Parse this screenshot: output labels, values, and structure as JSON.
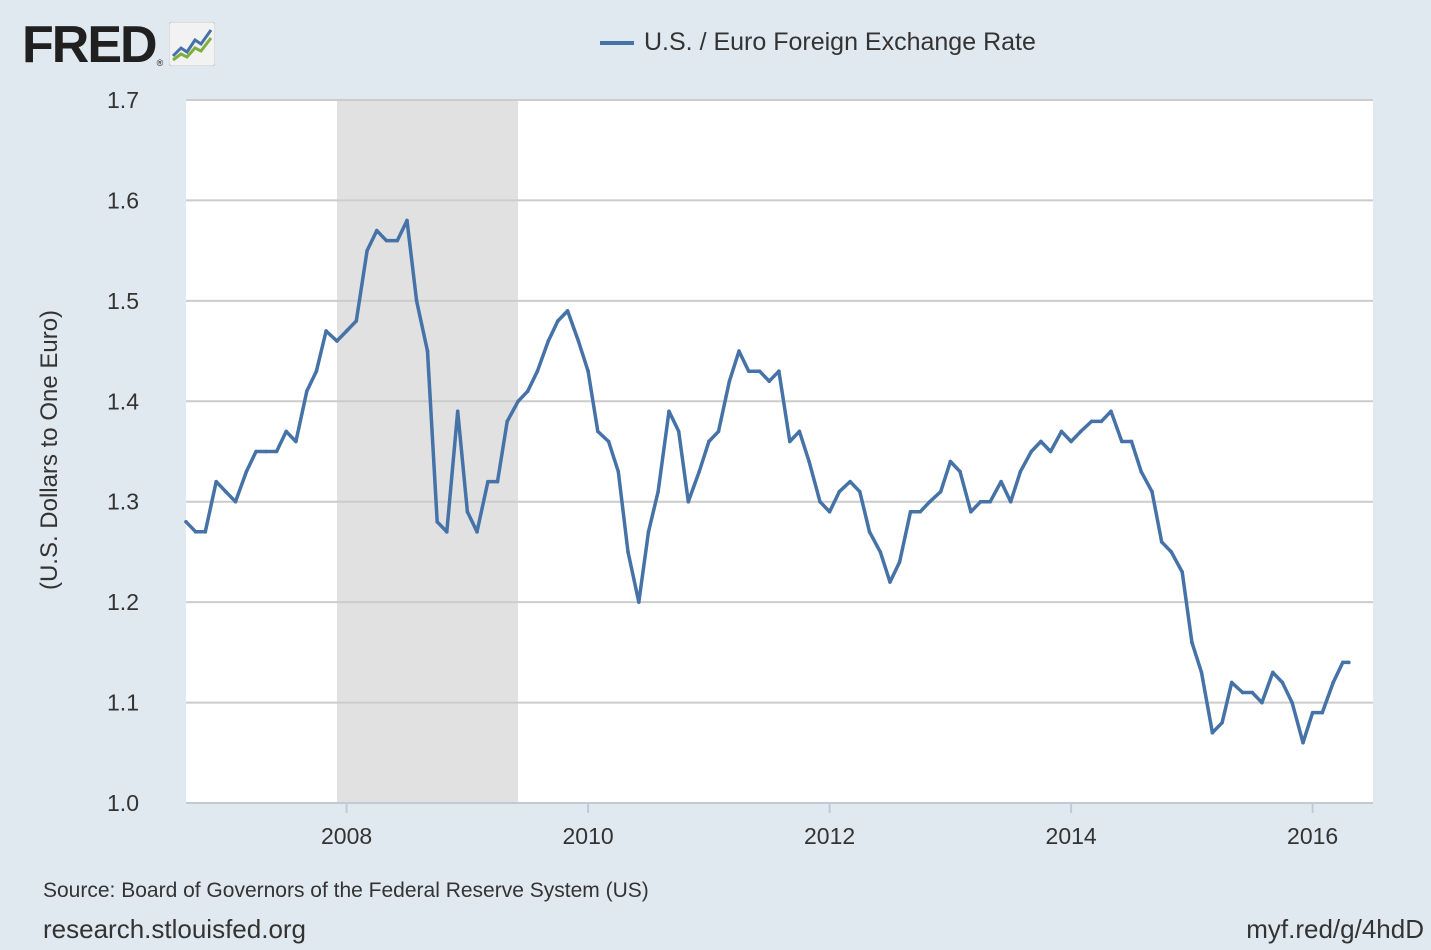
{
  "brand": {
    "logo_text": "FRED",
    "logo_mark": "®",
    "logo_icon": "line-chart-icon"
  },
  "footer": {
    "source": "Source: Board of Governors of the Federal Reserve System (US)",
    "site": "research.stlouisfed.org",
    "short_url": "myf.red/g/4hdD"
  },
  "colors": {
    "series": "#4572a7",
    "recession": "#e1e1e1",
    "grid": "#cccccc",
    "background": "#e1e9f0"
  },
  "chart_data": {
    "type": "line",
    "title": "",
    "xlabel": "",
    "ylabel": "(U.S. Dollars to One Euro)",
    "xlim": [
      2006.67,
      2016.5
    ],
    "ylim": [
      1.0,
      1.7
    ],
    "yticks": [
      "1.0",
      "1.1",
      "1.2",
      "1.3",
      "1.4",
      "1.5",
      "1.6",
      "1.7"
    ],
    "xticks": [
      "2008",
      "2010",
      "2012",
      "2014",
      "2016"
    ],
    "grid": true,
    "legend": "top-center",
    "recession_shading": [
      {
        "start": 2007.92,
        "end": 2009.42
      }
    ],
    "series": [
      {
        "name": "U.S. / Euro Foreign Exchange Rate",
        "x": [
          2006.67,
          2006.75,
          2006.83,
          2006.92,
          2007.0,
          2007.08,
          2007.17,
          2007.25,
          2007.33,
          2007.42,
          2007.5,
          2007.58,
          2007.67,
          2007.75,
          2007.83,
          2007.92,
          2008.0,
          2008.08,
          2008.17,
          2008.25,
          2008.33,
          2008.42,
          2008.5,
          2008.58,
          2008.67,
          2008.75,
          2008.83,
          2008.92,
          2009.0,
          2009.08,
          2009.17,
          2009.25,
          2009.33,
          2009.42,
          2009.5,
          2009.58,
          2009.67,
          2009.75,
          2009.83,
          2009.92,
          2010.0,
          2010.08,
          2010.17,
          2010.25,
          2010.33,
          2010.42,
          2010.5,
          2010.58,
          2010.67,
          2010.75,
          2010.83,
          2010.92,
          2011.0,
          2011.08,
          2011.17,
          2011.25,
          2011.33,
          2011.42,
          2011.5,
          2011.58,
          2011.67,
          2011.75,
          2011.83,
          2011.92,
          2012.0,
          2012.08,
          2012.17,
          2012.25,
          2012.33,
          2012.42,
          2012.5,
          2012.58,
          2012.67,
          2012.75,
          2012.83,
          2012.92,
          2013.0,
          2013.08,
          2013.17,
          2013.25,
          2013.33,
          2013.42,
          2013.5,
          2013.58,
          2013.67,
          2013.75,
          2013.83,
          2013.92,
          2014.0,
          2014.08,
          2014.17,
          2014.25,
          2014.33,
          2014.42,
          2014.5,
          2014.58,
          2014.67,
          2014.75,
          2014.83,
          2014.92,
          2015.0,
          2015.08,
          2015.17,
          2015.25,
          2015.33,
          2015.42,
          2015.5,
          2015.58,
          2015.67,
          2015.75,
          2015.83,
          2015.92,
          2016.0,
          2016.08,
          2016.17,
          2016.25,
          2016.3
        ],
        "y": [
          1.28,
          1.27,
          1.27,
          1.32,
          1.31,
          1.3,
          1.33,
          1.35,
          1.35,
          1.35,
          1.37,
          1.36,
          1.41,
          1.43,
          1.47,
          1.46,
          1.47,
          1.48,
          1.55,
          1.57,
          1.56,
          1.56,
          1.58,
          1.5,
          1.45,
          1.28,
          1.27,
          1.39,
          1.29,
          1.27,
          1.32,
          1.32,
          1.38,
          1.4,
          1.41,
          1.43,
          1.46,
          1.48,
          1.49,
          1.46,
          1.43,
          1.37,
          1.36,
          1.33,
          1.25,
          1.2,
          1.27,
          1.31,
          1.39,
          1.37,
          1.3,
          1.33,
          1.36,
          1.37,
          1.42,
          1.45,
          1.43,
          1.43,
          1.42,
          1.43,
          1.36,
          1.37,
          1.34,
          1.3,
          1.29,
          1.31,
          1.32,
          1.31,
          1.27,
          1.25,
          1.22,
          1.24,
          1.29,
          1.29,
          1.3,
          1.31,
          1.34,
          1.33,
          1.29,
          1.3,
          1.3,
          1.32,
          1.3,
          1.33,
          1.35,
          1.36,
          1.35,
          1.37,
          1.36,
          1.37,
          1.38,
          1.38,
          1.39,
          1.36,
          1.36,
          1.33,
          1.31,
          1.26,
          1.25,
          1.23,
          1.16,
          1.13,
          1.07,
          1.08,
          1.12,
          1.11,
          1.11,
          1.1,
          1.13,
          1.12,
          1.1,
          1.06,
          1.09,
          1.09,
          1.12,
          1.14,
          1.14
        ]
      }
    ]
  }
}
